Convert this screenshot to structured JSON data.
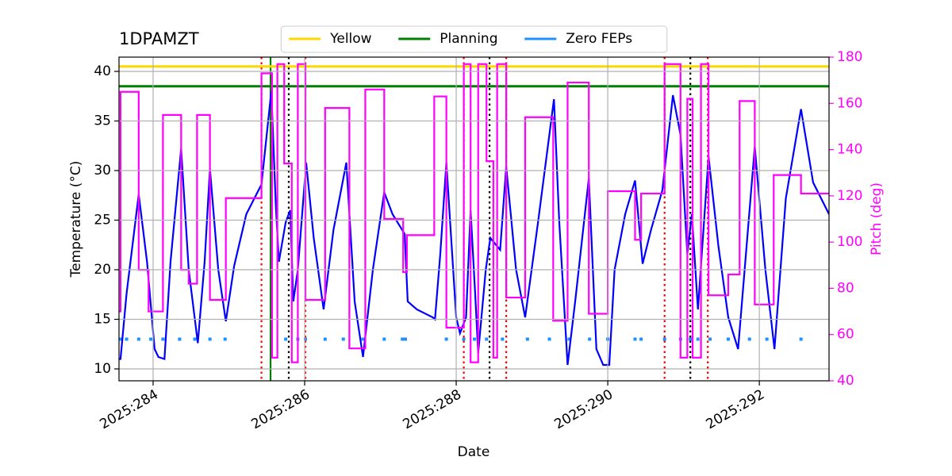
{
  "chart_data": {
    "type": "line",
    "title": "1DPAMZT",
    "xlabel": "Date",
    "ylabel": "Temperature (°C)",
    "y2label": "Pitch (deg)",
    "xlim": [
      283.55,
      292.92
    ],
    "ylim": [
      8.8,
      41.44
    ],
    "y2lim": [
      40,
      180
    ],
    "xticks": [
      {
        "value": 284,
        "label": "2025:284"
      },
      {
        "value": 286,
        "label": "2025:286"
      },
      {
        "value": 288,
        "label": "2025:288"
      },
      {
        "value": 290,
        "label": "2025:290"
      },
      {
        "value": 292,
        "label": "2025:292"
      }
    ],
    "yticks": [
      10,
      15,
      20,
      25,
      30,
      35,
      40
    ],
    "y2ticks": [
      40,
      60,
      80,
      100,
      120,
      140,
      160,
      180
    ],
    "y2color": "#ff00ff",
    "grid": true,
    "legend": "upper center",
    "series": [
      {
        "name": "Yellow",
        "color": "#ffd700",
        "style": "hline",
        "values": [
          40.5
        ]
      },
      {
        "name": "Planning",
        "color": "#008000",
        "style": "hline",
        "values": [
          38.5
        ]
      },
      {
        "name": "Zero FEPs",
        "color": "#1e90ff",
        "style": "dots",
        "x": [
          283.57,
          283.65,
          283.81,
          283.97,
          284.13,
          284.35,
          284.55,
          284.75,
          284.95,
          285.75,
          285.91,
          286.01,
          286.27,
          286.51,
          286.77,
          287.05,
          287.29,
          287.33,
          287.87,
          288.1,
          288.24,
          288.4,
          288.61,
          288.94,
          289.23,
          289.49,
          289.76,
          290.0,
          290.36,
          290.44,
          290.75,
          290.96,
          291.09,
          291.19,
          291.35,
          291.59,
          291.87,
          292.1,
          292.55
        ],
        "values": [
          13,
          13,
          13,
          13,
          13,
          13,
          13,
          13,
          13,
          13,
          13,
          13,
          13,
          13,
          13,
          13,
          13,
          13,
          13,
          13,
          13,
          13,
          13,
          13,
          13,
          13,
          13,
          13,
          13,
          13,
          13,
          13,
          13,
          13,
          13,
          13,
          13,
          13,
          13
        ]
      },
      {
        "color": "#0000ff",
        "style": "line",
        "x": [
          283.55,
          283.57,
          283.65,
          283.81,
          283.92,
          284.02,
          284.07,
          284.15,
          284.23,
          284.37,
          284.47,
          284.59,
          284.68,
          284.75,
          284.86,
          284.96,
          285.07,
          285.23,
          285.43,
          285.56,
          285.62,
          285.66,
          285.75,
          285.81,
          285.85,
          285.91,
          286.02,
          286.12,
          286.25,
          286.38,
          286.55,
          286.66,
          286.77,
          286.9,
          287.05,
          287.16,
          287.32,
          287.36,
          287.48,
          287.69,
          287.72,
          287.79,
          287.87,
          288.0,
          288.05,
          288.13,
          288.19,
          288.25,
          288.29,
          288.39,
          288.45,
          288.58,
          288.66,
          288.79,
          288.91,
          289.08,
          289.29,
          289.36,
          289.47,
          289.57,
          289.75,
          289.85,
          289.94,
          290.02,
          290.09,
          290.23,
          290.36,
          290.46,
          290.57,
          290.72,
          290.86,
          290.96,
          291.05,
          291.11,
          291.19,
          291.33,
          291.46,
          291.59,
          291.72,
          291.94,
          292.08,
          292.2,
          292.35,
          292.55,
          292.71,
          292.92
        ],
        "values": [
          11.0,
          11.0,
          17.6,
          27.6,
          20.8,
          12.0,
          11.2,
          11.0,
          20.8,
          32.2,
          20.0,
          12.6,
          20.8,
          30.2,
          20.0,
          14.8,
          20.4,
          25.6,
          28.6,
          38.0,
          26.4,
          20.8,
          24.8,
          26.0,
          16.8,
          20.0,
          30.8,
          23.2,
          16.0,
          24.0,
          30.8,
          16.8,
          11.2,
          20.0,
          27.8,
          25.6,
          23.6,
          16.8,
          16.0,
          15.2,
          15.0,
          21.6,
          30.8,
          15.2,
          13.6,
          15.2,
          26.0,
          17.6,
          11.6,
          20.0,
          23.2,
          22.0,
          30.4,
          20.0,
          15.2,
          24.8,
          37.2,
          24.8,
          10.4,
          16.8,
          29.2,
          12.0,
          10.4,
          10.4,
          20.0,
          25.6,
          29.0,
          20.6,
          24.0,
          28.0,
          37.6,
          33.6,
          21.6,
          25.6,
          16.0,
          31.4,
          22.4,
          15.2,
          12.0,
          32.4,
          20.0,
          12.0,
          27.2,
          36.2,
          28.8,
          25.6
        ]
      },
      {
        "color": "#ff00ff",
        "style": "steps-post",
        "axis": "y2",
        "x": [
          283.55,
          283.57,
          283.81,
          283.94,
          284.13,
          284.37,
          284.47,
          284.58,
          284.75,
          284.96,
          285.43,
          285.57,
          285.64,
          285.73,
          285.83,
          285.91,
          286.01,
          286.27,
          286.59,
          286.8,
          287.05,
          287.3,
          287.35,
          287.71,
          287.87,
          288.1,
          288.19,
          288.29,
          288.4,
          288.49,
          288.54,
          288.66,
          288.91,
          289.28,
          289.47,
          289.75,
          290.0,
          290.36,
          290.44,
          290.75,
          290.96,
          291.05,
          291.12,
          291.23,
          291.33,
          291.59,
          291.74,
          291.94,
          292.19,
          292.55
        ],
        "values": [
          70,
          165,
          88,
          70,
          155,
          88,
          82,
          155,
          75,
          119,
          173,
          50,
          177,
          134,
          48,
          177,
          75,
          158,
          54,
          166,
          110,
          87,
          103,
          163,
          63,
          177,
          48,
          177,
          135,
          50,
          177,
          76,
          154,
          66,
          169,
          69,
          122,
          101,
          121,
          177,
          50,
          162,
          50,
          177,
          77,
          86,
          161,
          73,
          129,
          121
        ]
      }
    ],
    "vlines": [
      {
        "color": "#008000",
        "style": "solid",
        "x": [
          285.55
        ]
      },
      {
        "color": "#ff0000",
        "style": "dotted",
        "x": [
          285.43,
          286.01,
          288.1,
          288.66,
          290.75,
          291.32
        ]
      },
      {
        "color": "#000000",
        "style": "dotted",
        "x": [
          285.79,
          288.44,
          291.09
        ]
      }
    ]
  }
}
